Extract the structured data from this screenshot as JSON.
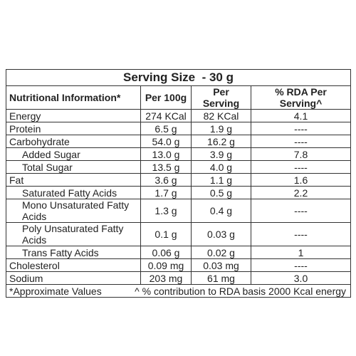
{
  "table": {
    "title": "Serving Size  - 30 g",
    "header": [
      "Nutritional Information*",
      "Per 100g",
      "Per Serving",
      "% RDA Per Serving^"
    ],
    "rows": [
      [
        "Energy",
        "274 KCal",
        "82 KCal",
        "4.1"
      ],
      [
        "Protein",
        "6.5 g",
        "1.9 g",
        "----"
      ],
      [
        "Carbohydrate",
        "54.0 g",
        "16.2 g",
        "----"
      ],
      [
        "Added Sugar",
        "13.0 g",
        "3.9 g",
        "7.8"
      ],
      [
        "Total Sugar",
        "13.5 g",
        "4.0 g",
        "----"
      ],
      [
        "Fat",
        "3.6 g",
        "1.1 g",
        "1.6"
      ],
      [
        "Saturated Fatty Acids",
        "1.7 g",
        "0.5 g",
        "2.2"
      ],
      [
        "Mono Unsaturated Fatty Acids",
        "1.3 g",
        "0.4 g",
        "----"
      ],
      [
        "Poly Unsaturated Fatty Acids",
        "0.1 g",
        "0.03 g",
        "----"
      ],
      [
        "Trans Fatty Acids",
        "0.06 g",
        "0.02 g",
        "1"
      ],
      [
        "Cholesterol",
        "0.09 mg",
        "0.03 mg",
        "----"
      ],
      [
        "Sodium",
        "203 mg",
        "61 mg",
        "3.0"
      ]
    ],
    "footer": [
      "*Approximate Values",
      "^ % contribution to RDA basis 2000 Kcal energy"
    ]
  }
}
